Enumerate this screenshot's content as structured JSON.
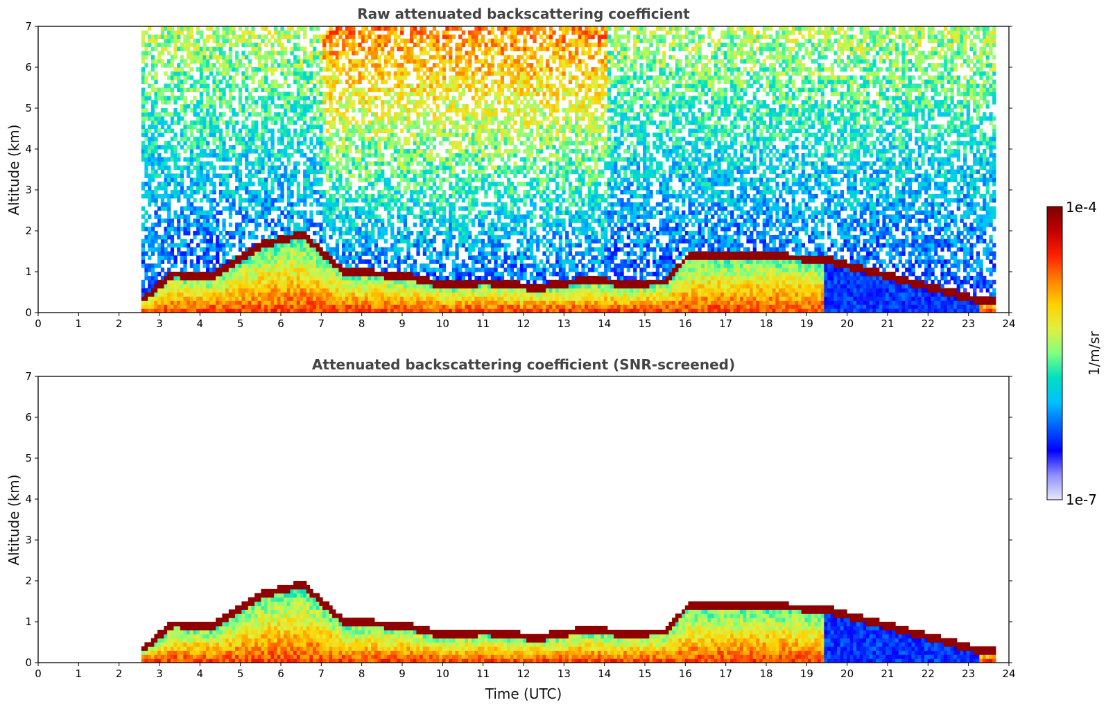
{
  "chart_data": [
    {
      "type": "heatmap",
      "title": "Raw attenuated backscattering coefficient",
      "xlabel": "",
      "ylabel": "Altitude (km)",
      "xlim": [
        0,
        24
      ],
      "ylim": [
        0,
        7
      ],
      "x_ticks": [
        "0",
        "1",
        "2",
        "3",
        "4",
        "5",
        "6",
        "7",
        "8",
        "9",
        "10",
        "11",
        "12",
        "13",
        "14",
        "15",
        "16",
        "17",
        "18",
        "19",
        "20",
        "21",
        "22",
        "23",
        "24"
      ],
      "y_ticks": [
        "0",
        "1",
        "2",
        "3",
        "4",
        "5",
        "6",
        "7"
      ],
      "data_start_hour": 2.55,
      "data_end_hour": 23.65,
      "cloud_top_km": [
        {
          "t": 2.6,
          "z": 0.3
        },
        {
          "t": 3.3,
          "z": 0.9
        },
        {
          "t": 4.2,
          "z": 0.8
        },
        {
          "t": 5.5,
          "z": 1.6
        },
        {
          "t": 6.5,
          "z": 1.85
        },
        {
          "t": 7.5,
          "z": 0.95
        },
        {
          "t": 9.0,
          "z": 0.85
        },
        {
          "t": 10.0,
          "z": 0.6
        },
        {
          "t": 11.0,
          "z": 0.7
        },
        {
          "t": 12.3,
          "z": 0.55
        },
        {
          "t": 13.5,
          "z": 0.75
        },
        {
          "t": 14.5,
          "z": 0.65
        },
        {
          "t": 15.5,
          "z": 0.7
        },
        {
          "t": 16.0,
          "z": 1.3
        },
        {
          "t": 17.0,
          "z": 1.35
        },
        {
          "t": 18.5,
          "z": 1.3
        },
        {
          "t": 19.4,
          "z": 1.25
        },
        {
          "t": 23.2,
          "z": 0.25
        }
      ]
    },
    {
      "type": "heatmap",
      "title": "Attenuated backscattering coefficient (SNR-screened)",
      "xlabel": "Time (UTC)",
      "ylabel": "Altitude (km)",
      "xlim": [
        0,
        24
      ],
      "ylim": [
        0,
        7
      ],
      "x_ticks": [
        "0",
        "1",
        "2",
        "3",
        "4",
        "5",
        "6",
        "7",
        "8",
        "9",
        "10",
        "11",
        "12",
        "13",
        "14",
        "15",
        "16",
        "17",
        "18",
        "19",
        "20",
        "21",
        "22",
        "23",
        "24"
      ],
      "y_ticks": [
        "0",
        "1",
        "2",
        "3",
        "4",
        "5",
        "6",
        "7"
      ]
    }
  ],
  "colorbar": {
    "label": "1/m/sr",
    "max_label": "1e-4",
    "min_label": "1e-7",
    "scale": "log",
    "range": [
      1e-07,
      0.0001
    ],
    "colors": [
      "#e8e8f8",
      "#9090ff",
      "#0000ff",
      "#0060ff",
      "#00c0ff",
      "#00e0c0",
      "#80ff80",
      "#e0f040",
      "#ffd000",
      "#ff8000",
      "#ff2000",
      "#c00000",
      "#800000"
    ]
  }
}
